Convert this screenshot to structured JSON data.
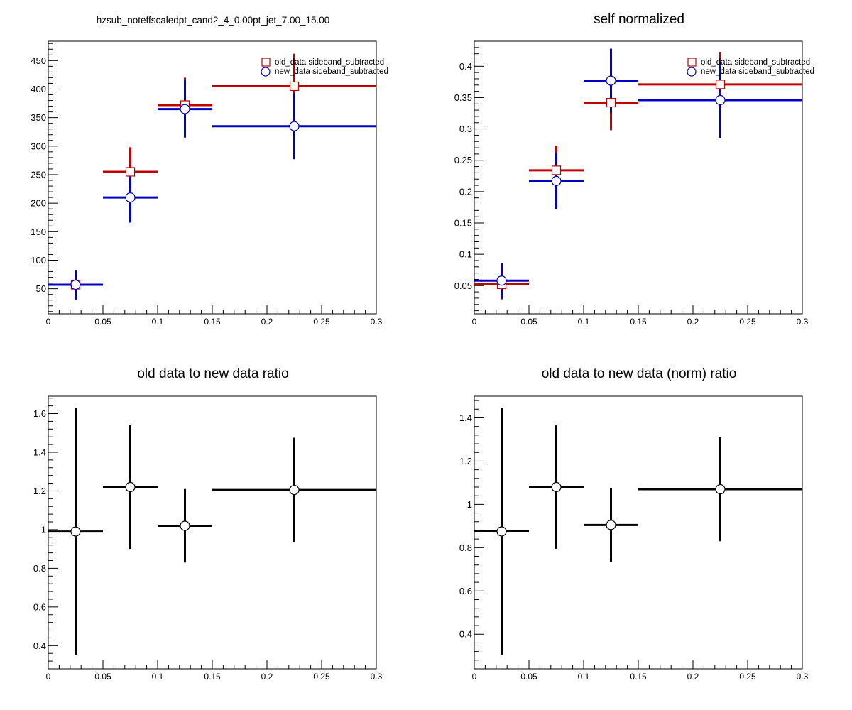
{
  "chart_data": [
    {
      "type": "scatter",
      "title": "hzsub_noteffscaledpt_cand2_4_0.00pt_jet_7.00_15.00",
      "xlabel": "",
      "ylabel": "",
      "xlim": [
        0,
        0.3
      ],
      "ylim": [
        6,
        484
      ],
      "xticks": [
        "0",
        "0.05",
        "0.1",
        "0.15",
        "0.2",
        "0.25",
        "0.3"
      ],
      "yticks": [
        "50",
        "100",
        "150",
        "200",
        "250",
        "300",
        "350",
        "400",
        "450"
      ],
      "legend": [
        {
          "label": "old_data sideband_subtracted",
          "marker": "square",
          "color": "#c00000"
        },
        {
          "label": "new_data sideband_subtracted",
          "marker": "circle",
          "color": "#0000c0"
        }
      ],
      "legend_position": "top-right",
      "series": [
        {
          "name": "old_data sideband_subtracted",
          "color": "#c00000",
          "marker": "square",
          "points": [
            {
              "x": 0.025,
              "xlo": 0.0,
              "xhi": 0.05,
              "y": 57,
              "err": 24
            },
            {
              "x": 0.075,
              "xlo": 0.05,
              "xhi": 0.1,
              "y": 255,
              "err": 43
            },
            {
              "x": 0.125,
              "xlo": 0.1,
              "xhi": 0.15,
              "y": 372,
              "err": 48
            },
            {
              "x": 0.225,
              "xlo": 0.15,
              "xhi": 0.3,
              "y": 405,
              "err": 57
            }
          ]
        },
        {
          "name": "new_data sideband_subtracted",
          "color": "#0000c0",
          "marker": "circle",
          "points": [
            {
              "x": 0.025,
              "xlo": 0.0,
              "xhi": 0.05,
              "y": 57,
              "err": 26
            },
            {
              "x": 0.075,
              "xlo": 0.05,
              "xhi": 0.1,
              "y": 210,
              "err": 44
            },
            {
              "x": 0.125,
              "xlo": 0.1,
              "xhi": 0.15,
              "y": 365,
              "err": 50
            },
            {
              "x": 0.225,
              "xlo": 0.15,
              "xhi": 0.3,
              "y": 335,
              "err": 58
            }
          ]
        }
      ]
    },
    {
      "type": "scatter",
      "title": "self normalized",
      "xlabel": "",
      "ylabel": "",
      "xlim": [
        0,
        0.3
      ],
      "ylim": [
        0.005,
        0.44
      ],
      "xticks": [
        "0",
        "0.05",
        "0.1",
        "0.15",
        "0.2",
        "0.25",
        "0.3"
      ],
      "yticks": [
        "0.05",
        "0.1",
        "0.15",
        "0.2",
        "0.25",
        "0.3",
        "0.35",
        "0.4"
      ],
      "legend": [
        {
          "label": "old_data sideband_subtracted",
          "marker": "square",
          "color": "#c00000"
        },
        {
          "label": "new_data sideband_subtracted",
          "marker": "circle",
          "color": "#0000c0"
        }
      ],
      "legend_position": "top-right",
      "series": [
        {
          "name": "old_data sideband_subtracted",
          "color": "#c00000",
          "marker": "square",
          "points": [
            {
              "x": 0.025,
              "xlo": 0.0,
              "xhi": 0.05,
              "y": 0.052,
              "err": 0.024
            },
            {
              "x": 0.075,
              "xlo": 0.05,
              "xhi": 0.1,
              "y": 0.234,
              "err": 0.039
            },
            {
              "x": 0.125,
              "xlo": 0.1,
              "xhi": 0.15,
              "y": 0.342,
              "err": 0.044
            },
            {
              "x": 0.225,
              "xlo": 0.15,
              "xhi": 0.3,
              "y": 0.371,
              "err": 0.052
            }
          ]
        },
        {
          "name": "new_data sideband_subtracted",
          "color": "#0000c0",
          "marker": "circle",
          "points": [
            {
              "x": 0.025,
              "xlo": 0.0,
              "xhi": 0.05,
              "y": 0.058,
              "err": 0.028
            },
            {
              "x": 0.075,
              "xlo": 0.05,
              "xhi": 0.1,
              "y": 0.217,
              "err": 0.045
            },
            {
              "x": 0.125,
              "xlo": 0.1,
              "xhi": 0.15,
              "y": 0.377,
              "err": 0.051
            },
            {
              "x": 0.225,
              "xlo": 0.15,
              "xhi": 0.3,
              "y": 0.346,
              "err": 0.06
            }
          ]
        }
      ]
    },
    {
      "type": "scatter",
      "title": "old data to new data ratio",
      "xlabel": "",
      "ylabel": "",
      "xlim": [
        0,
        0.3
      ],
      "ylim": [
        0.28,
        1.69
      ],
      "xticks": [
        "0",
        "0.05",
        "0.1",
        "0.15",
        "0.2",
        "0.25",
        "0.3"
      ],
      "yticks": [
        "0.4",
        "0.6",
        "0.8",
        "1",
        "1.2",
        "1.4",
        "1.6"
      ],
      "legend": [],
      "series": [
        {
          "color": "#000000",
          "marker": "circle",
          "points": [
            {
              "x": 0.025,
              "xlo": 0.0,
              "xhi": 0.05,
              "y": 0.99,
              "err": 0.64
            },
            {
              "x": 0.075,
              "xlo": 0.05,
              "xhi": 0.1,
              "y": 1.22,
              "err": 0.32
            },
            {
              "x": 0.125,
              "xlo": 0.1,
              "xhi": 0.15,
              "y": 1.02,
              "err": 0.19
            },
            {
              "x": 0.225,
              "xlo": 0.15,
              "xhi": 0.3,
              "y": 1.205,
              "err": 0.27
            }
          ]
        }
      ]
    },
    {
      "type": "scatter",
      "title": "old data to new data (norm) ratio",
      "xlabel": "",
      "ylabel": "",
      "xlim": [
        0,
        0.3
      ],
      "ylim": [
        0.24,
        1.5
      ],
      "xticks": [
        "0",
        "0.05",
        "0.1",
        "0.15",
        "0.2",
        "0.25",
        "0.3"
      ],
      "yticks": [
        "0.4",
        "0.6",
        "0.8",
        "1",
        "1.2",
        "1.4"
      ],
      "legend": [],
      "series": [
        {
          "color": "#000000",
          "marker": "circle",
          "points": [
            {
              "x": 0.025,
              "xlo": 0.0,
              "xhi": 0.05,
              "y": 0.875,
              "err": 0.57
            },
            {
              "x": 0.075,
              "xlo": 0.05,
              "xhi": 0.1,
              "y": 1.08,
              "err": 0.285
            },
            {
              "x": 0.125,
              "xlo": 0.1,
              "xhi": 0.15,
              "y": 0.905,
              "err": 0.17
            },
            {
              "x": 0.225,
              "xlo": 0.15,
              "xhi": 0.3,
              "y": 1.07,
              "err": 0.24
            }
          ]
        }
      ]
    }
  ]
}
